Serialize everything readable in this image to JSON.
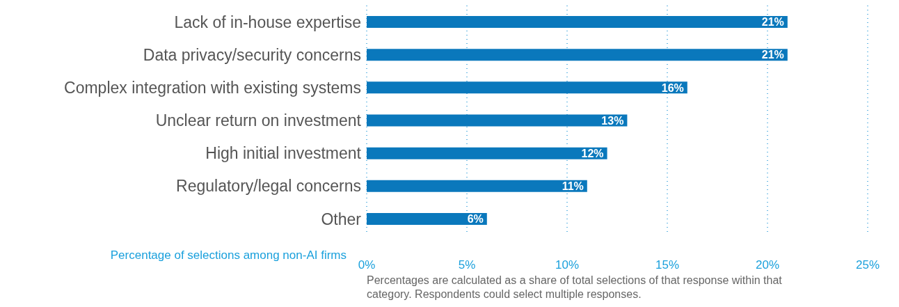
{
  "chart_data": {
    "type": "bar",
    "orientation": "horizontal",
    "categories": [
      "Lack of in-house expertise",
      "Data privacy/security concerns",
      "Complex integration with existing systems",
      "Unclear return on investment",
      "High initial investment",
      "Regulatory/legal concerns",
      "Other"
    ],
    "values": [
      21,
      21,
      16,
      13,
      12,
      11,
      6
    ],
    "color": "#0a78bc",
    "value_labels": [
      "21%",
      "21%",
      "16%",
      "13%",
      "12%",
      "11%",
      "6%"
    ],
    "xlabel": "Percentage of selections among non-AI firms",
    "xlim": [
      0,
      25
    ],
    "xticks": [
      {
        "value": 0,
        "label": "0%"
      },
      {
        "value": 5,
        "label": "5%"
      },
      {
        "value": 10,
        "label": "10%"
      },
      {
        "value": 15,
        "label": "15%"
      },
      {
        "value": 20,
        "label": "20%"
      },
      {
        "value": 25,
        "label": "25%"
      }
    ],
    "grid": "x",
    "annotations": [
      "Percentages are calculated as a share of total selections of that response within that category. Respondents could select multiple responses."
    ]
  }
}
